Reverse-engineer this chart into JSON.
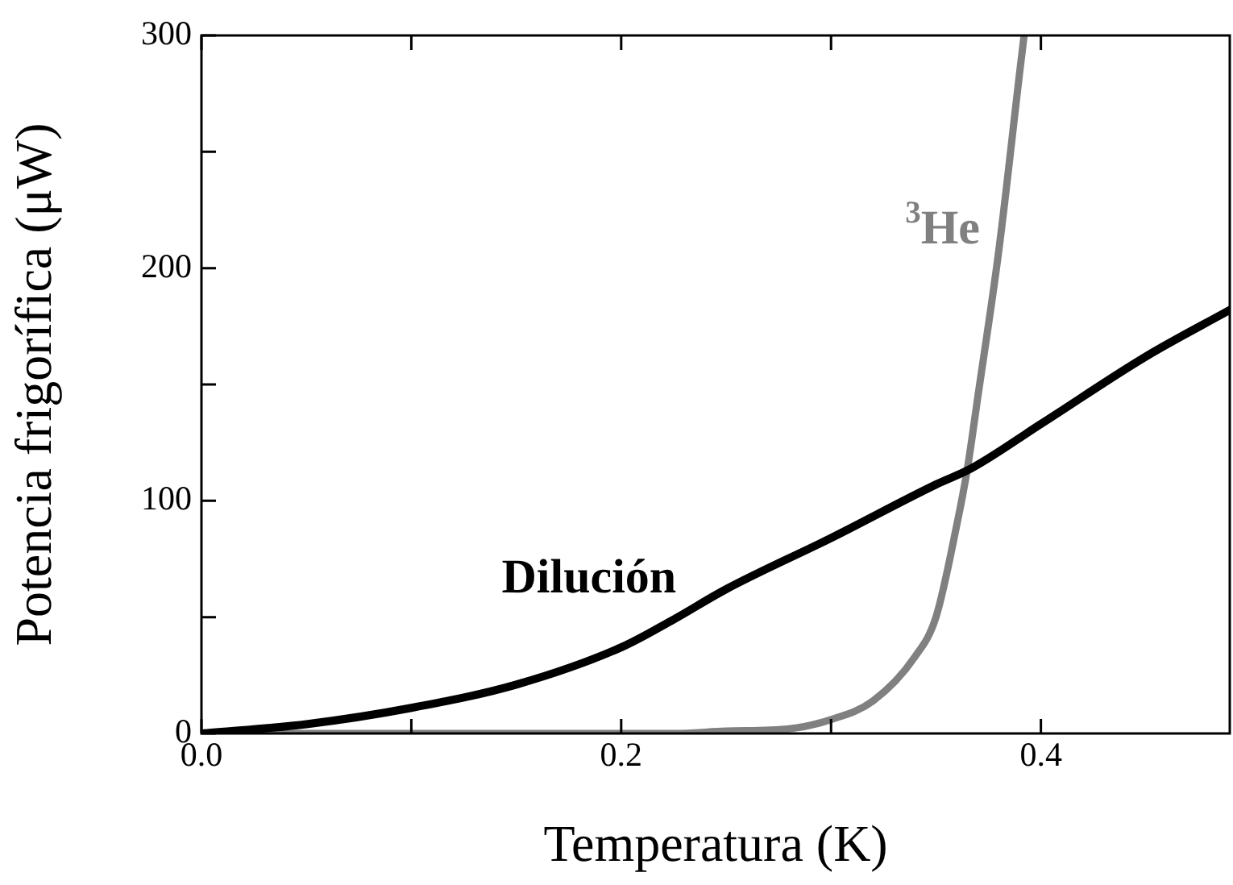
{
  "chart_data": {
    "type": "line",
    "xlabel": "Temperatura (K)",
    "ylabel": "Potencia frigorífica (μW)",
    "xlim": [
      0,
      0.49
    ],
    "ylim": [
      0,
      300
    ],
    "xticks": [
      {
        "value": 0,
        "label": "0.0"
      },
      {
        "value": 0.1,
        "label": null
      },
      {
        "value": 0.2,
        "label": "0.2"
      },
      {
        "value": 0.3,
        "label": null
      },
      {
        "value": 0.4,
        "label": "0.4"
      }
    ],
    "yticks": [
      0,
      {
        "value": 50,
        "label": null
      },
      100,
      {
        "value": 150,
        "label": null
      },
      200,
      {
        "value": 250,
        "label": null
      },
      300
    ],
    "grid": false,
    "legend": false,
    "marker": "none",
    "line_style": "solid",
    "series": [
      {
        "name": "Dilución",
        "color": "#000000",
        "x": [
          0,
          0.05,
          0.1,
          0.15,
          0.2,
          0.225,
          0.25,
          0.3,
          0.35,
          0.367,
          0.4,
          0.45,
          0.49
        ],
        "values": [
          0,
          4,
          11,
          21,
          37,
          49,
          62,
          84,
          107,
          114,
          133,
          162,
          182
        ]
      },
      {
        "name": "$^{3}$He",
        "color": "#808080",
        "x": [
          0,
          0.1,
          0.2,
          0.225,
          0.25,
          0.28,
          0.3,
          0.32,
          0.34,
          0.35,
          0.36,
          0.365,
          0.37,
          0.38,
          0.39,
          0.392
        ],
        "values": [
          0,
          0,
          0,
          0,
          1,
          2,
          6,
          14,
          33,
          50,
          90,
          114,
          145,
          208,
          285,
          300
        ]
      }
    ]
  }
}
